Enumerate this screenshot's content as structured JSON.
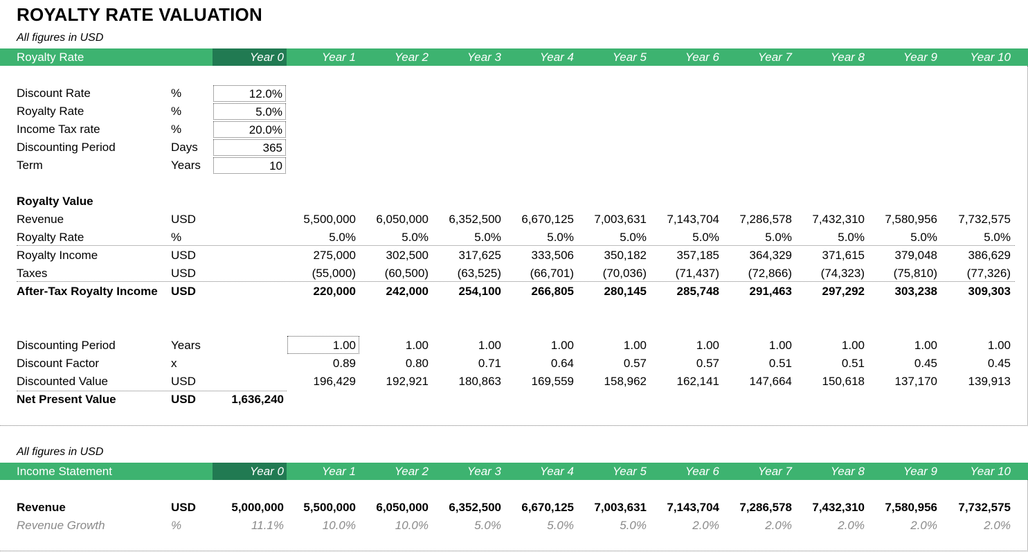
{
  "title": "ROYALTY RATE VALUATION",
  "subtitle": "All figures in USD",
  "years": [
    "Year 0",
    "Year 1",
    "Year 2",
    "Year 3",
    "Year 4",
    "Year 5",
    "Year 6",
    "Year 7",
    "Year 8",
    "Year 9",
    "Year 10"
  ],
  "section1_header": "Royalty Rate",
  "inputs": [
    {
      "label": "Discount Rate",
      "unit": "%",
      "value": "12.0%"
    },
    {
      "label": "Royalty Rate",
      "unit": "%",
      "value": "5.0%"
    },
    {
      "label": "Income Tax rate",
      "unit": "%",
      "value": "20.0%"
    },
    {
      "label": "Discounting Period",
      "unit": "Days",
      "value": "365"
    },
    {
      "label": "Term",
      "unit": "Years",
      "value": "10"
    }
  ],
  "royalty_value_heading": "Royalty Value",
  "royalty_rows": [
    {
      "label": "Revenue",
      "unit": "USD",
      "values": [
        "",
        "5,500,000",
        "6,050,000",
        "6,352,500",
        "6,670,125",
        "7,003,631",
        "7,143,704",
        "7,286,578",
        "7,432,310",
        "7,580,956",
        "7,732,575"
      ]
    },
    {
      "label": "Royalty Rate",
      "unit": "%",
      "values": [
        "",
        "5.0%",
        "5.0%",
        "5.0%",
        "5.0%",
        "5.0%",
        "5.0%",
        "5.0%",
        "5.0%",
        "5.0%",
        "5.0%"
      ]
    },
    {
      "label": "Royalty Income",
      "unit": "USD",
      "values": [
        "",
        "275,000",
        "302,500",
        "317,625",
        "333,506",
        "350,182",
        "357,185",
        "364,329",
        "371,615",
        "379,048",
        "386,629"
      ]
    },
    {
      "label": "Taxes",
      "unit": "USD",
      "values": [
        "",
        "(55,000)",
        "(60,500)",
        "(63,525)",
        "(66,701)",
        "(70,036)",
        "(71,437)",
        "(72,866)",
        "(74,323)",
        "(75,810)",
        "(77,326)"
      ]
    },
    {
      "label": "After-Tax Royalty Income",
      "unit": "USD",
      "values": [
        "",
        "220,000",
        "242,000",
        "254,100",
        "266,805",
        "280,145",
        "285,748",
        "291,463",
        "297,292",
        "303,238",
        "309,303"
      ]
    }
  ],
  "discount_rows": [
    {
      "label": "Discounting Period",
      "unit": "Years",
      "values": [
        "",
        "1.00",
        "1.00",
        "1.00",
        "1.00",
        "1.00",
        "1.00",
        "1.00",
        "1.00",
        "1.00",
        "1.00"
      ]
    },
    {
      "label": "Discount Factor",
      "unit": "x",
      "values": [
        "",
        "0.89",
        "0.80",
        "0.71",
        "0.64",
        "0.57",
        "0.57",
        "0.51",
        "0.51",
        "0.45",
        "0.45"
      ]
    },
    {
      "label": "Discounted Value",
      "unit": "USD",
      "values": [
        "",
        "196,429",
        "192,921",
        "180,863",
        "169,559",
        "158,962",
        "162,141",
        "147,664",
        "150,618",
        "137,170",
        "139,913"
      ]
    },
    {
      "label": "Net Present Value",
      "unit": "USD",
      "values": [
        "1,636,240",
        "",
        "",
        "",
        "",
        "",
        "",
        "",
        "",
        "",
        ""
      ]
    }
  ],
  "subtitle2": "All figures in USD",
  "section2_header": "Income Statement",
  "income_rows": [
    {
      "label": "Revenue",
      "unit": "USD",
      "values": [
        "5,000,000",
        "5,500,000",
        "6,050,000",
        "6,352,500",
        "6,670,125",
        "7,003,631",
        "7,143,704",
        "7,286,578",
        "7,432,310",
        "7,580,956",
        "7,732,575"
      ]
    },
    {
      "label": "Revenue Growth",
      "unit": "%",
      "values": [
        "11.1%",
        "10.0%",
        "10.0%",
        "5.0%",
        "5.0%",
        "5.0%",
        "2.0%",
        "2.0%",
        "2.0%",
        "2.0%",
        "2.0%"
      ]
    }
  ],
  "colors": {
    "header_green": "#3db370",
    "year0_dark_green": "#217a52"
  }
}
